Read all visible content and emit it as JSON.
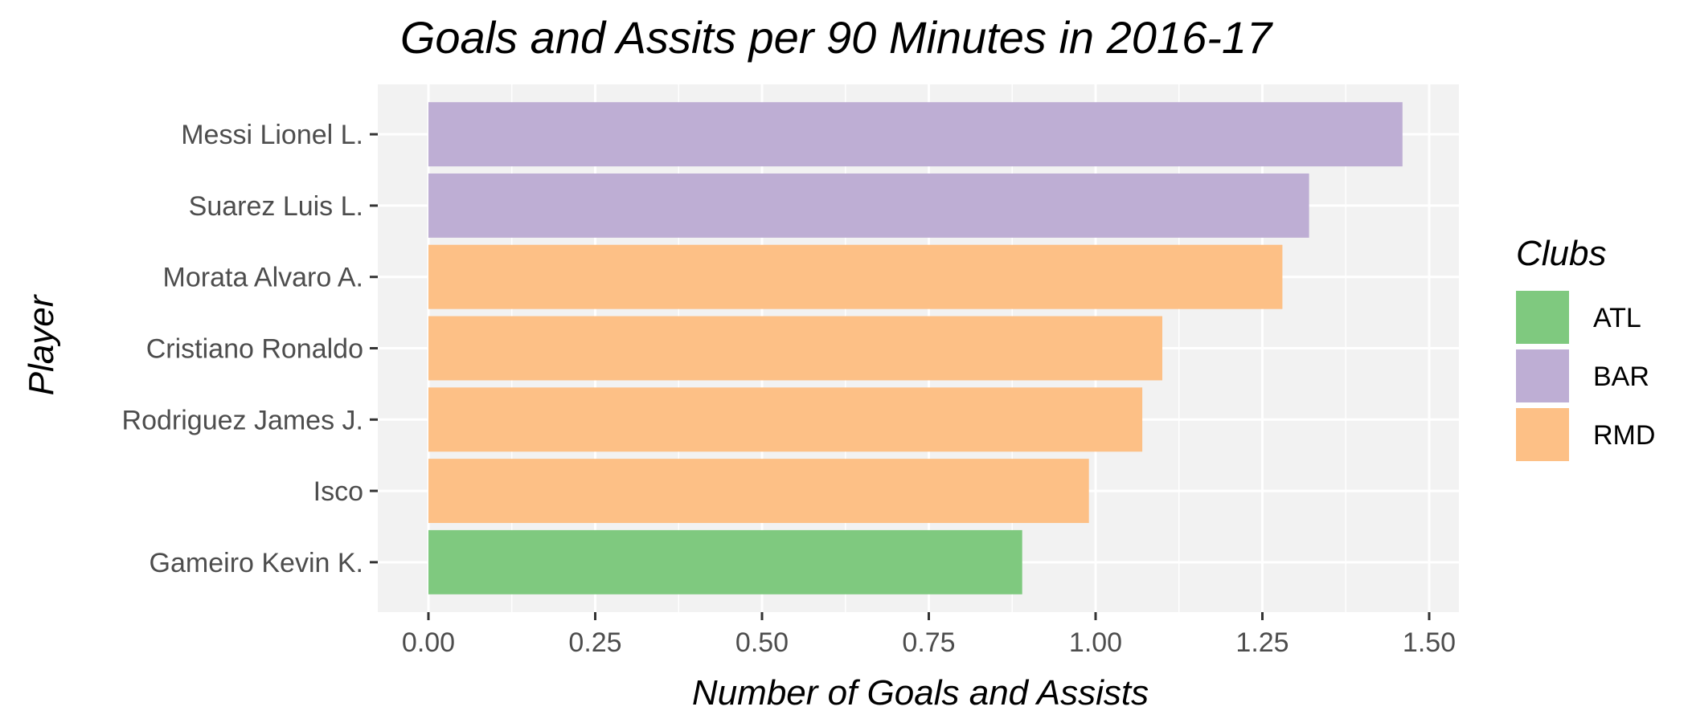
{
  "chart_data": {
    "type": "bar",
    "orientation": "horizontal",
    "title": "Goals and Assits per 90 Minutes in 2016-17",
    "xlabel": "Number of Goals and Assists",
    "ylabel": "Player",
    "xlim": [
      0,
      1.5
    ],
    "x_ticks": [
      "0.00",
      "0.25",
      "0.50",
      "0.75",
      "1.00",
      "1.25",
      "1.50"
    ],
    "grid": true,
    "legend": {
      "title": "Clubs",
      "placement": "right",
      "entries": [
        {
          "label": "ATL",
          "color": "#7fc97f"
        },
        {
          "label": "BAR",
          "color": "#beaed4"
        },
        {
          "label": "RMD",
          "color": "#fdc086"
        }
      ]
    },
    "bars": [
      {
        "player": "Messi Lionel L.",
        "value": 1.46,
        "club": "BAR"
      },
      {
        "player": "Suarez Luis L.",
        "value": 1.32,
        "club": "BAR"
      },
      {
        "player": "Morata Alvaro A.",
        "value": 1.28,
        "club": "RMD"
      },
      {
        "player": "Cristiano Ronaldo",
        "value": 1.1,
        "club": "RMD"
      },
      {
        "player": "Rodriguez James J.",
        "value": 1.07,
        "club": "RMD"
      },
      {
        "player": "Isco",
        "value": 0.99,
        "club": "RMD"
      },
      {
        "player": "Gameiro Kevin K.",
        "value": 0.89,
        "club": "ATL"
      }
    ]
  }
}
